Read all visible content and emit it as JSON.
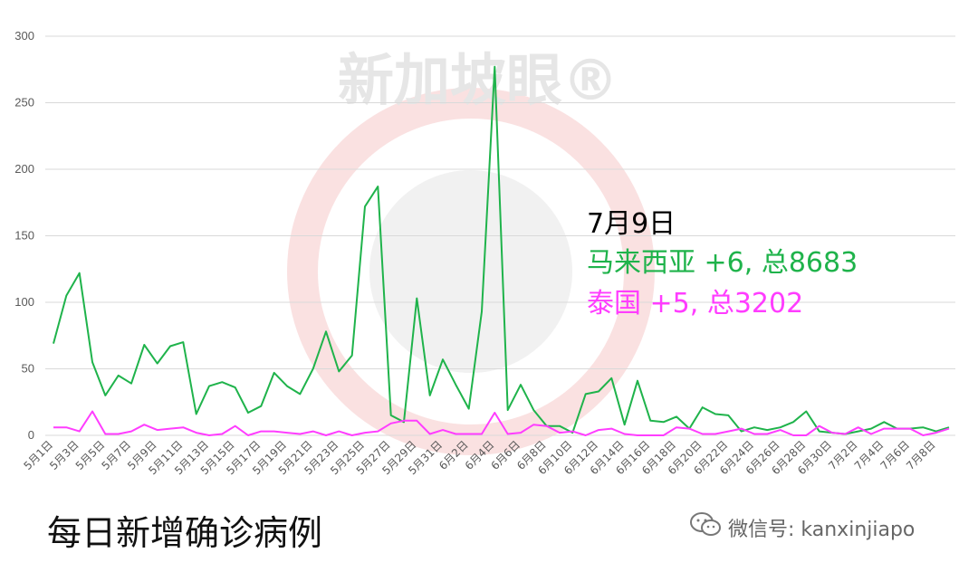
{
  "watermark": {
    "text": "新加坡眼®"
  },
  "annotation": {
    "date": "7月9日",
    "series1_line": "马来西亚 +6, 总8683",
    "series2_line": "泰国 +5, 总3202"
  },
  "footer": {
    "title": "每日新增确诊病例",
    "wechat_label": "微信号: kanxinjiapo",
    "icon": "wechat-icon"
  },
  "colors": {
    "series1": "#1fb34b",
    "series2": "#ff3dff",
    "grid": "#d9d9d9",
    "watermark": "#f2b3b3"
  },
  "chart_data": {
    "type": "line",
    "ylim": [
      0,
      300
    ],
    "yticks": [
      0,
      50,
      100,
      150,
      200,
      250,
      300
    ],
    "grid": true,
    "x": [
      "5月1日",
      "5月2日",
      "5月3日",
      "5月4日",
      "5月5日",
      "5月6日",
      "5月7日",
      "5月8日",
      "5月9日",
      "5月10日",
      "5月11日",
      "5月12日",
      "5月13日",
      "5月14日",
      "5月15日",
      "5月16日",
      "5月17日",
      "5月18日",
      "5月19日",
      "5月20日",
      "5月21日",
      "5月22日",
      "5月23日",
      "5月24日",
      "5月25日",
      "5月26日",
      "5月27日",
      "5月28日",
      "5月29日",
      "5月30日",
      "5月31日",
      "6月1日",
      "6月2日",
      "6月3日",
      "6月4日",
      "6月5日",
      "6月6日",
      "6月7日",
      "6月8日",
      "6月9日",
      "6月10日",
      "6月11日",
      "6月12日",
      "6月13日",
      "6月14日",
      "6月15日",
      "6月16日",
      "6月17日",
      "6月18日",
      "6月19日",
      "6月20日",
      "6月21日",
      "6月22日",
      "6月23日",
      "6月24日",
      "6月25日",
      "6月26日",
      "6月27日",
      "6月28日",
      "6月29日",
      "6月30日",
      "7月1日",
      "7月2日",
      "7月3日",
      "7月4日",
      "7月5日",
      "7月6日",
      "7月7日",
      "7月8日",
      "7月9日"
    ],
    "xticks": [
      "5月1日",
      "5月3日",
      "5月5日",
      "5月7日",
      "5月9日",
      "5月11日",
      "5月13日",
      "5月15日",
      "5月17日",
      "5月19日",
      "5月21日",
      "5月23日",
      "5月25日",
      "5月27日",
      "5月29日",
      "5月31日",
      "6月2日",
      "6月4日",
      "6月6日",
      "6月8日",
      "6月10日",
      "6月12日",
      "6月14日",
      "6月16日",
      "6月18日",
      "6月20日",
      "6月22日",
      "6月24日",
      "6月26日",
      "6月28日",
      "6月30日",
      "7月2日",
      "7月4日",
      "7月6日",
      "7月8日"
    ],
    "series": [
      {
        "color": "#1fb34b",
        "values": [
          69,
          105,
          122,
          55,
          30,
          45,
          39,
          68,
          54,
          67,
          70,
          16,
          37,
          40,
          36,
          17,
          22,
          47,
          37,
          31,
          50,
          78,
          48,
          60,
          172,
          187,
          15,
          10,
          103,
          30,
          57,
          38,
          20,
          93,
          277,
          19,
          38,
          19,
          7,
          7,
          2,
          31,
          33,
          43,
          8,
          41,
          11,
          10,
          14,
          5,
          21,
          16,
          15,
          3,
          6,
          4,
          6,
          10,
          18,
          3,
          2,
          1,
          3,
          5,
          10,
          5,
          5,
          6,
          3,
          6
        ]
      },
      {
        "color": "#ff3dff",
        "values": [
          6,
          6,
          3,
          18,
          1,
          1,
          3,
          8,
          4,
          5,
          6,
          2,
          0,
          1,
          7,
          0,
          3,
          3,
          2,
          1,
          3,
          0,
          3,
          0,
          2,
          3,
          9,
          11,
          11,
          1,
          4,
          1,
          1,
          1,
          17,
          1,
          2,
          8,
          7,
          2,
          3,
          0,
          4,
          5,
          1,
          0,
          0,
          0,
          6,
          5,
          1,
          1,
          3,
          5,
          1,
          1,
          4,
          0,
          0,
          7,
          2,
          1,
          6,
          1,
          5,
          5,
          5,
          0,
          2,
          5
        ]
      }
    ]
  }
}
